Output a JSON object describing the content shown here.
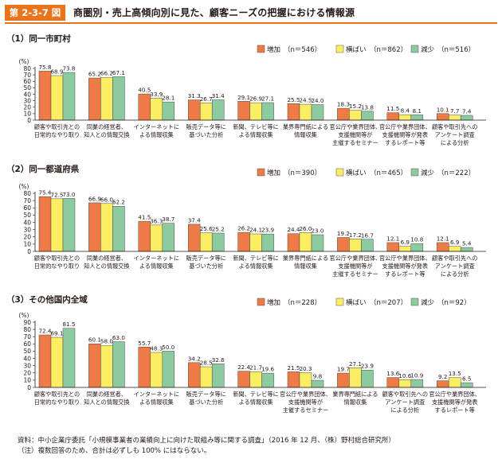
{
  "figure": {
    "number": "第 2-3-7 図",
    "title": "商圏別・売上高傾向別に見た、顧客ニーズの把握における情報源"
  },
  "colors": {
    "accent": "#e9741c",
    "increase": "#ee7a45",
    "flat": "#fbee63",
    "decrease": "#8ccba0"
  },
  "chart_data": [
    {
      "type": "bar",
      "title": "（1）同一市町村",
      "ylabel": "(%)",
      "ylim": [
        0,
        80
      ],
      "yticks": [
        0,
        10,
        20,
        30,
        40,
        50,
        60,
        70,
        80
      ],
      "categories": [
        [
          "顧客や取引先との",
          "日常的なやり取り"
        ],
        [
          "同業の経営者、",
          "知人との情報交換"
        ],
        [
          "インターネットに",
          "よる情報収集"
        ],
        [
          "販売データ等に",
          "基づいた分析"
        ],
        [
          "新聞、テレビ等に",
          "よる情報収集"
        ],
        [
          "業界専門紙による",
          "情報収集"
        ],
        [
          "官公庁や業界団体、",
          "支援機関等が",
          "主催するセミナー"
        ],
        [
          "官公庁や業界団体、",
          "支援機関等が発表",
          "するレポート等"
        ],
        [
          "顧客や取引先への",
          "アンケート調査",
          "による分析"
        ]
      ],
      "series": [
        {
          "name": "増加",
          "n": "（n＝546）",
          "values": [
            75.8,
            65.2,
            40.5,
            31.3,
            29.1,
            25.5,
            18.3,
            11.5,
            10.1
          ]
        },
        {
          "name": "横ばい",
          "n": "（n＝862）",
          "values": [
            68.9,
            66.2,
            33.9,
            26.7,
            26.9,
            24.5,
            15.2,
            8.4,
            7.7
          ]
        },
        {
          "name": "減少",
          "n": "（n＝516）",
          "values": [
            73.8,
            67.1,
            28.1,
            31.4,
            27.1,
            24.0,
            13.8,
            8.1,
            7.4
          ]
        }
      ]
    },
    {
      "type": "bar",
      "title": "（2）同一都道府県",
      "ylabel": "(%)",
      "ylim": [
        0,
        80
      ],
      "yticks": [
        0,
        10,
        20,
        30,
        40,
        50,
        60,
        70,
        80
      ],
      "categories": [
        [
          "顧客や取引先との",
          "日常的なやり取り"
        ],
        [
          "同業の経営者、",
          "知人との情報交換"
        ],
        [
          "インターネットに",
          "よる情報収集"
        ],
        [
          "販売データ等に",
          "基づいた分析"
        ],
        [
          "新聞、テレビ等に",
          "よる情報収集"
        ],
        [
          "業界専門紙による",
          "情報収集"
        ],
        [
          "官公庁や業界団体、",
          "支援機関等が",
          "主催するセミナー"
        ],
        [
          "官公庁や業界団体、",
          "支援機関等が発表",
          "するレポート等"
        ],
        [
          "顧客や取引先への",
          "アンケート調査",
          "による分析"
        ]
      ],
      "series": [
        {
          "name": "増加",
          "n": "（n＝390）",
          "values": [
            75.4,
            66.9,
            41.5,
            37.4,
            26.2,
            24.4,
            19.2,
            12.1,
            12.1
          ]
        },
        {
          "name": "横ばい",
          "n": "（n＝465）",
          "values": [
            72.5,
            66.0,
            36.3,
            25.6,
            24.1,
            26.0,
            17.2,
            6.9,
            6.9
          ]
        },
        {
          "name": "減少",
          "n": "（n＝222）",
          "values": [
            73.0,
            62.2,
            38.7,
            25.2,
            23.9,
            23.0,
            16.7,
            10.8,
            5.4
          ]
        }
      ]
    },
    {
      "type": "bar",
      "title": "（3）その他国内全域",
      "ylabel": "(%)",
      "ylim": [
        0,
        90
      ],
      "yticks": [
        0,
        10,
        20,
        30,
        40,
        50,
        60,
        70,
        80,
        90
      ],
      "categories": [
        [
          "顧客や取引先との",
          "日常的なやり取り"
        ],
        [
          "同業の経営者、",
          "知人との情報交換"
        ],
        [
          "インターネットに",
          "よる情報収集"
        ],
        [
          "販売データ等に",
          "基づいた分析"
        ],
        [
          "新聞、テレビ等に",
          "よる情報収集"
        ],
        [
          "官公庁や業界団体、",
          "支援機関等が",
          "主催するセミナー"
        ],
        [
          "業界専門紙による",
          "情報収集"
        ],
        [
          "顧客や取引先への",
          "アンケート調査",
          "による分析"
        ],
        [
          "官公庁や業界団体、",
          "支援機関等が発表",
          "するレポート等"
        ]
      ],
      "series": [
        {
          "name": "増加",
          "n": "（n＝228）",
          "values": [
            72.4,
            60.1,
            55.7,
            34.2,
            22.4,
            21.5,
            19.7,
            13.6,
            9.2
          ]
        },
        {
          "name": "横ばい",
          "n": "（n＝207）",
          "values": [
            69.1,
            58.0,
            48.3,
            28.5,
            21.7,
            20.3,
            27.1,
            10.6,
            13.5
          ]
        },
        {
          "name": "減少",
          "n": "（n＝92）",
          "values": [
            81.5,
            63.0,
            50.0,
            32.6,
            19.6,
            9.8,
            23.9,
            10.9,
            6.5
          ]
        }
      ]
    }
  ],
  "footnotes": {
    "source": "資料：中小企業庁委託「小規模事業者の業績向上に向けた取組み等に関する調査」（2016 年 12 月、（株）野村総合研究所）",
    "note": "（注）複数回答のため、合計は必ずしも 100% にはならない。"
  }
}
